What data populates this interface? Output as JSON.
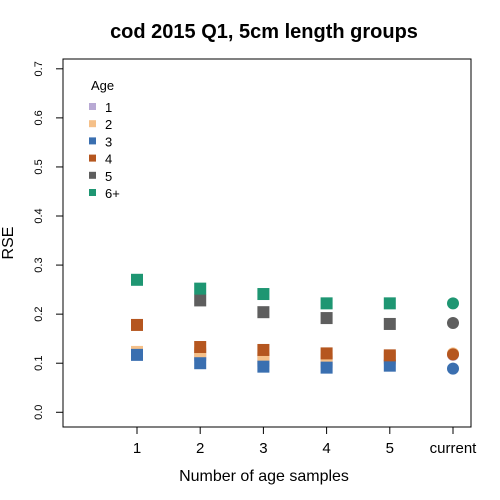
{
  "chart_data": {
    "type": "scatter",
    "title": "cod 2015 Q1, 5cm length groups",
    "xlabel": "Number of age samples",
    "ylabel": "RSE",
    "categories": [
      "1",
      "2",
      "3",
      "4",
      "5",
      "current"
    ],
    "ylim": [
      -0.03,
      0.72
    ],
    "yticks": [
      0.0,
      0.1,
      0.2,
      0.3,
      0.4,
      0.5,
      0.6,
      0.7
    ],
    "ytick_labels": [
      "0.0",
      "0.1",
      "0.2",
      "0.3",
      "0.4",
      "0.5",
      "0.6",
      "0.7"
    ],
    "grid": false,
    "legend": {
      "title": "Age",
      "position": "top-left"
    },
    "series": [
      {
        "name": "1",
        "color": "#b8a9d4",
        "values": [
          0.12,
          0.117,
          0.105,
          0.103,
          0.11,
          0.117
        ]
      },
      {
        "name": "2",
        "color": "#f5c089",
        "values": [
          0.123,
          0.12,
          0.11,
          0.108,
          0.113,
          0.12
        ]
      },
      {
        "name": "3",
        "color": "#3a6fb0",
        "values": [
          0.117,
          0.1,
          0.093,
          0.091,
          0.095,
          0.089
        ]
      },
      {
        "name": "4",
        "color": "#b5561f",
        "values": [
          0.178,
          0.133,
          0.127,
          0.12,
          0.116,
          0.118
        ]
      },
      {
        "name": "5",
        "color": "#5e5e5e",
        "values": [
          null,
          0.228,
          0.204,
          0.192,
          0.18,
          0.182
        ]
      },
      {
        "name": "6+",
        "color": "#1e9672",
        "values": [
          0.27,
          0.252,
          0.241,
          0.222,
          0.222,
          0.222
        ]
      }
    ],
    "marker_style": "square; last category drawn as circle"
  }
}
